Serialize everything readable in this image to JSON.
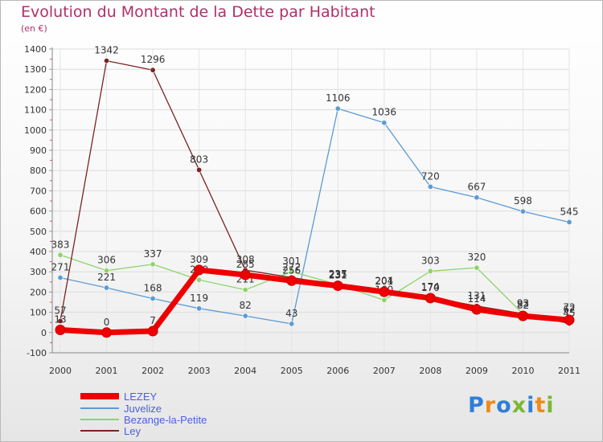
{
  "header": {
    "title": "Evolution du Montant de la Dette par Habitant",
    "subtitle": "(en €)"
  },
  "logo": {
    "text": "Proxiti",
    "colors": [
      "#2f7fd6",
      "#f08a1c",
      "#2f7fd6",
      "#79b835",
      "#2f7fd6",
      "#f08a1c",
      "#79b835"
    ]
  },
  "chart_data": {
    "type": "line",
    "x": [
      "2000",
      "2001",
      "2002",
      "2003",
      "2004",
      "2005",
      "2006",
      "2007",
      "2008",
      "2009",
      "2010",
      "2011"
    ],
    "ylim": [
      -100,
      1400
    ],
    "yticks": [
      "-100",
      "0",
      "100",
      "200",
      "300",
      "400",
      "500",
      "600",
      "700",
      "800",
      "900",
      "1000",
      "1100",
      "1200",
      "1300",
      "1400"
    ],
    "grid": true,
    "legend_position": "bottom-left",
    "series": [
      {
        "name": "Juvelize",
        "color": "#5b9bd5",
        "values": [
          271,
          221,
          168,
          119,
          82,
          43,
          1106,
          1036,
          720,
          667,
          598,
          545
        ],
        "labels": [
          "271",
          "221",
          "168",
          "119",
          "82",
          "43",
          "1106",
          "1036",
          "720",
          "667",
          "598",
          "545"
        ]
      },
      {
        "name": "Bezange-la-Petite",
        "color": "#8fd36a",
        "values": [
          383,
          306,
          337,
          260,
          211,
          301,
          237,
          160,
          303,
          320,
          92,
          72
        ],
        "labels": [
          "383",
          "306",
          "337",
          "260",
          "211",
          "301",
          "237",
          "160",
          "303",
          "320",
          "92",
          "72"
        ]
      },
      {
        "name": "Ley",
        "color": "#7a2424",
        "values": [
          57,
          1342,
          1296,
          803,
          308,
          272,
          235,
          204,
          174,
          131,
          93,
          45
        ],
        "labels": [
          "57",
          "1342",
          "1296",
          "803",
          "308",
          "272",
          "235",
          "204",
          "174",
          "131",
          "93",
          "45"
        ]
      },
      {
        "name": "LEZEY",
        "color": "#ee0000",
        "values": [
          13,
          0,
          7,
          309,
          285,
          256,
          231,
          201,
          170,
          114,
          82,
          62
        ],
        "labels": [
          "13",
          "0",
          "7",
          "309",
          "285",
          "256",
          "231",
          "201",
          "170",
          "114",
          "82",
          "62"
        ]
      }
    ],
    "legend": [
      "LEZEY",
      "Juvelize",
      "Bezange-la-Petite",
      "Ley"
    ]
  }
}
